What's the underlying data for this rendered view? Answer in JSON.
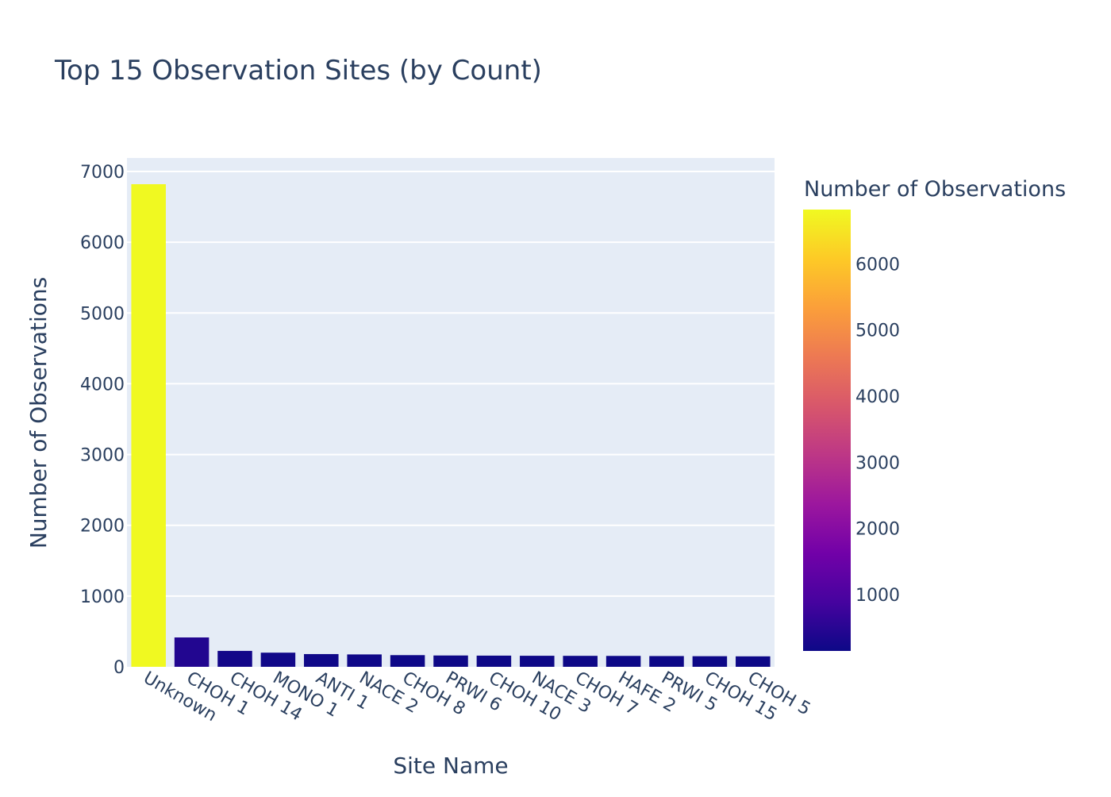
{
  "chart_data": {
    "type": "bar",
    "title": "Top 15 Observation Sites (by Count)",
    "xlabel": "Site Name",
    "ylabel": "Number of Observations",
    "categories": [
      "Unknown",
      "CHOH 1",
      "CHOH 14",
      "MONO 1",
      "ANTI 1",
      "NACE 2",
      "CHOH 8",
      "PRWI 6",
      "CHOH 10",
      "NACE 3",
      "CHOH 7",
      "HAFE 2",
      "PRWI 5",
      "CHOH 15",
      "CHOH 5"
    ],
    "values": [
      6820,
      415,
      225,
      200,
      180,
      175,
      165,
      160,
      158,
      156,
      155,
      154,
      152,
      150,
      148
    ],
    "ylim": [
      0,
      7000
    ],
    "yticks": [
      0,
      1000,
      2000,
      3000,
      4000,
      5000,
      6000,
      7000
    ],
    "grid": true,
    "colorbar": {
      "title": "Number of Observations",
      "colorscale": "plasma",
      "range": [
        148,
        6820
      ],
      "ticks": [
        1000,
        2000,
        3000,
        4000,
        5000,
        6000
      ]
    },
    "colors": {
      "plot_bg": "#e5ecf6",
      "grid": "#ffffff",
      "text": "#2a3f5f"
    }
  }
}
